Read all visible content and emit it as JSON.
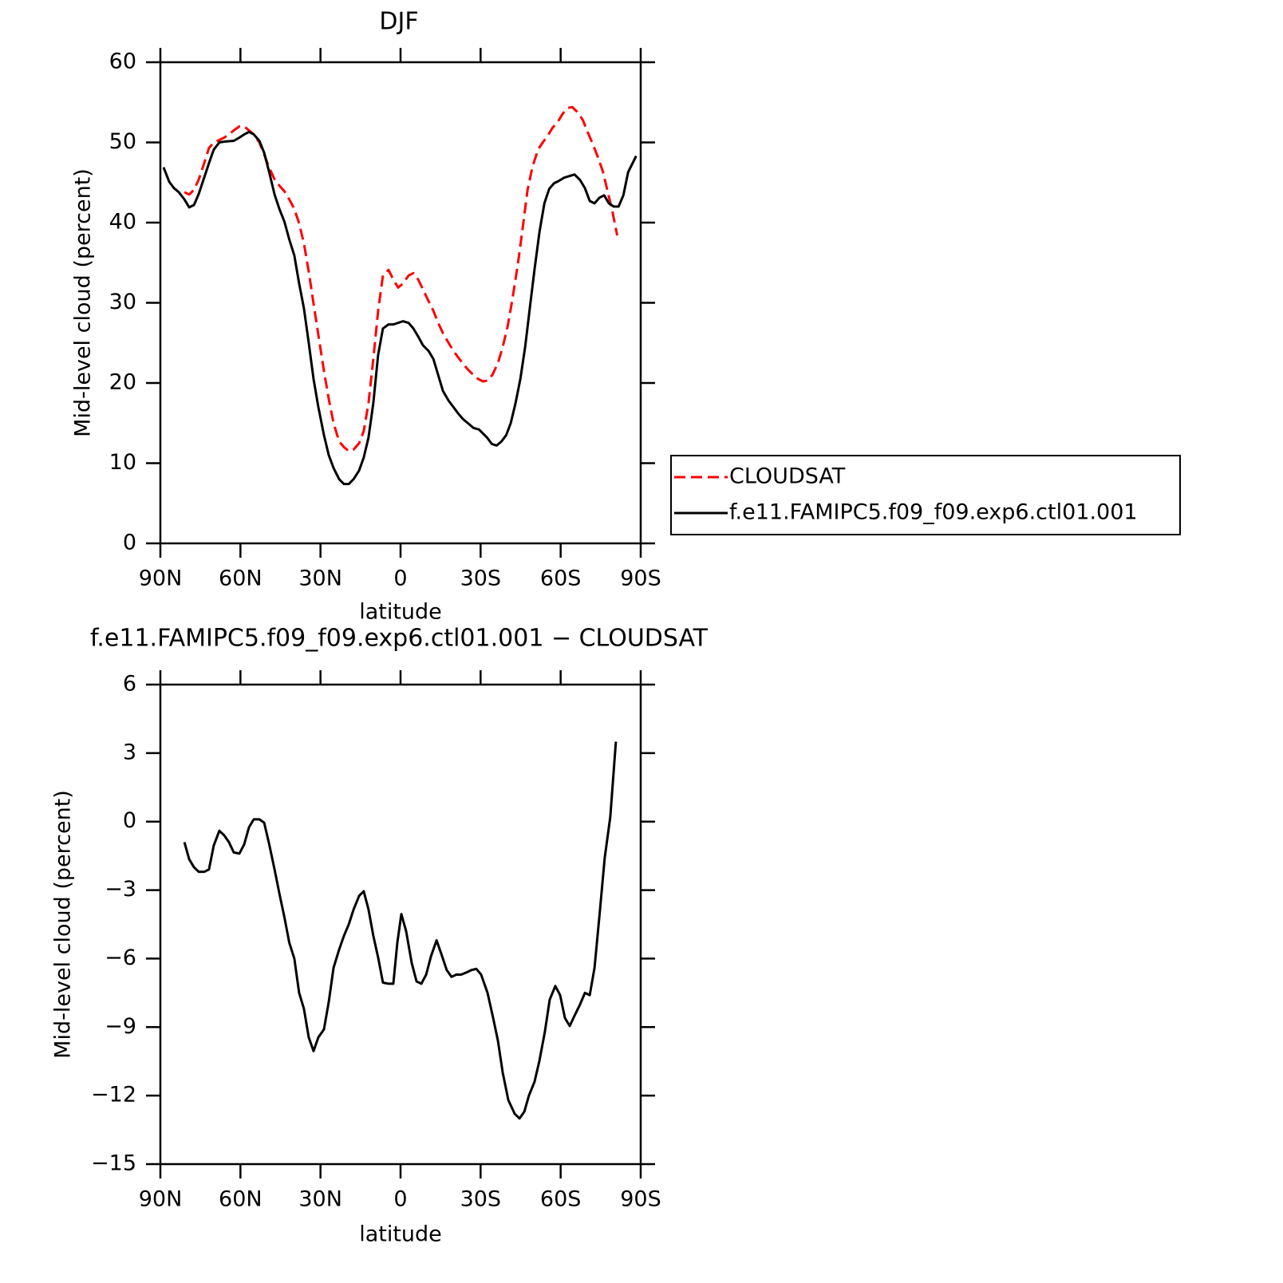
{
  "chart_data": [
    {
      "type": "line",
      "title": "DJF",
      "xlabel": "latitude",
      "ylabel": "Mid-level cloud (percent)",
      "xlim": [
        90,
        -90
      ],
      "xticks": [
        {
          "value": 90,
          "label": "90N"
        },
        {
          "value": 60,
          "label": "60N"
        },
        {
          "value": 30,
          "label": "30N"
        },
        0,
        {
          "value": -30,
          "label": "30S"
        },
        {
          "value": -60,
          "label": "60S"
        },
        {
          "value": -90,
          "label": "90S"
        }
      ],
      "ylim": [
        0,
        60
      ],
      "yticks": [
        0,
        10,
        20,
        30,
        40,
        50,
        60
      ],
      "legend": "outside-right",
      "series": [
        {
          "name": "CLOUDSAT",
          "color": "#ff0000",
          "line_style": "dashed",
          "x": [
            81,
            79.2,
            77.4,
            75.6,
            73.6,
            71.8,
            70,
            67.9,
            66.1,
            64.3,
            62.5,
            60.4,
            58.6,
            56.8,
            55,
            52.9,
            51.1,
            49.3,
            47.2,
            45.4,
            43.5,
            41.7,
            39.8,
            38,
            36.2,
            34.4,
            32.6,
            30.8,
            28.7,
            26.9,
            25.1,
            23,
            21.2,
            19.4,
            17.6,
            15.5,
            13.8,
            12,
            10.2,
            8.4,
            6.6,
            4.5,
            2.7,
            0.9,
            -0.9,
            -3,
            -4.8,
            -6.6,
            -8.4,
            -10.5,
            -12.3,
            -14.1,
            -15.9,
            -18,
            -19.8,
            -21.6,
            -23.4,
            -25.2,
            -27.3,
            -29.1,
            -30.9,
            -32.6,
            -34.4,
            -36.5,
            -38.3,
            -40.1,
            -41.9,
            -44,
            -45.8,
            -47.6,
            -49.4,
            -51.5,
            -53.3,
            -55.1,
            -56.9,
            -59,
            -60.8,
            -62.6,
            -64.4,
            -66.2,
            -68.3,
            -70.1,
            -71.9,
            -73.7,
            -75.8,
            -77.6,
            -79.4,
            -81.2
          ],
          "values": [
            43.8,
            43.5,
            44.1,
            45.4,
            47.4,
            49.3,
            50.0,
            50.3,
            50.6,
            51.0,
            51.5,
            52.0,
            52.0,
            51.5,
            51.0,
            50.0,
            48.5,
            46.9,
            45.4,
            44.6,
            43.9,
            42.9,
            41.7,
            39.9,
            37.4,
            33.9,
            29.9,
            26.0,
            21.5,
            18.0,
            15.0,
            12.7,
            12.0,
            11.5,
            11.7,
            12.5,
            14.0,
            17.5,
            23.0,
            29.0,
            33.4,
            34.1,
            32.9,
            31.9,
            32.4,
            33.4,
            33.7,
            32.9,
            31.7,
            30.2,
            29.0,
            27.5,
            26.2,
            25.0,
            24.0,
            23.2,
            22.4,
            21.7,
            21.0,
            20.5,
            20.2,
            20.3,
            21.0,
            22.5,
            24.5,
            27.0,
            30.4,
            34.9,
            39.4,
            44.1,
            46.9,
            49.1,
            50.0,
            50.8,
            51.8,
            52.6,
            53.6,
            54.3,
            54.4,
            53.8,
            52.8,
            51.3,
            49.9,
            48.4,
            46.4,
            43.9,
            41.4,
            38.4
          ]
        },
        {
          "name": "f.e11.FAMIPC5.f09_f09.exp6.ctl01.001",
          "color": "#000000",
          "line_style": "solid",
          "x": [
            88.8,
            86.7,
            84.9,
            83.1,
            81,
            79.2,
            77.4,
            75.6,
            73.6,
            71.8,
            70,
            67.9,
            66.1,
            62.5,
            60.4,
            58.6,
            56.8,
            55,
            52.9,
            51.1,
            49.3,
            47.2,
            45.4,
            43.5,
            41.7,
            39.8,
            38,
            36.2,
            34.4,
            32.6,
            30.8,
            28.7,
            26.9,
            25.1,
            23,
            21.2,
            19.4,
            17.6,
            15.5,
            13.8,
            12,
            10.2,
            8.4,
            6.6,
            4.5,
            2.7,
            0.9,
            -0.9,
            -3,
            -4.8,
            -6.6,
            -8.4,
            -10.5,
            -12.3,
            -14.1,
            -15.9,
            -18,
            -19.8,
            -21.6,
            -23.4,
            -25.2,
            -27.3,
            -29.4,
            -32.4,
            -34.2,
            -36,
            -37.8,
            -39.6,
            -41.3,
            -43.1,
            -44.9,
            -46.7,
            -48.5,
            -50.3,
            -52.1,
            -53.9,
            -55.7,
            -57.5,
            -59.3,
            -61.3,
            -65.2,
            -67.3,
            -69.1,
            -70.9,
            -72.7,
            -74.5,
            -76.3,
            -78.1,
            -79.9,
            -81.7,
            -83.5,
            -85.3,
            -88.3
          ],
          "values": [
            46.9,
            45.1,
            44.3,
            43.8,
            42.9,
            41.9,
            42.2,
            43.6,
            45.6,
            47.4,
            49.1,
            50.0,
            50.1,
            50.2,
            50.6,
            51.0,
            51.3,
            51.0,
            50.2,
            48.7,
            46.4,
            43.5,
            41.7,
            40.1,
            37.9,
            35.9,
            32.4,
            29.3,
            25.0,
            20.5,
            17.0,
            13.5,
            11.0,
            9.4,
            8.0,
            7.4,
            7.4,
            8.0,
            9.1,
            10.7,
            13.2,
            17.5,
            23.5,
            26.8,
            27.3,
            27.3,
            27.5,
            27.7,
            27.5,
            26.8,
            25.8,
            24.7,
            24.0,
            23.0,
            21.0,
            19.0,
            17.8,
            17.0,
            16.2,
            15.5,
            15.0,
            14.4,
            14.2,
            13.2,
            12.4,
            12.2,
            12.7,
            13.5,
            15.0,
            17.5,
            20.5,
            24.5,
            29.5,
            34.4,
            38.9,
            42.4,
            44.2,
            44.9,
            45.2,
            45.6,
            46.0,
            45.3,
            44.3,
            42.7,
            42.4,
            43.1,
            43.4,
            42.4,
            42.0,
            42.0,
            43.4,
            46.3,
            48.3
          ]
        }
      ]
    },
    {
      "type": "line",
      "title": "f.e11.FAMIPC5.f09_f09.exp6.ctl01.001 − CLOUDSAT",
      "xlabel": "latitude",
      "ylabel": "Mid-level cloud (percent)",
      "xlim": [
        90,
        -90
      ],
      "xticks": [
        {
          "value": 90,
          "label": "90N"
        },
        {
          "value": 60,
          "label": "60N"
        },
        {
          "value": 30,
          "label": "30N"
        },
        0,
        {
          "value": -30,
          "label": "30S"
        },
        {
          "value": -60,
          "label": "60S"
        },
        {
          "value": -90,
          "label": "90S"
        }
      ],
      "ylim": [
        -15,
        6
      ],
      "yticks": [
        {
          "value": -15,
          "label": "−15"
        },
        {
          "value": -12,
          "label": "−12"
        },
        {
          "value": -9,
          "label": "−9"
        },
        {
          "value": -6,
          "label": "−6"
        },
        {
          "value": -3,
          "label": "−3"
        },
        0,
        3,
        6
      ],
      "series": [
        {
          "color": "#000000",
          "line_style": "solid",
          "x": [
            81,
            79.2,
            77.4,
            75.6,
            73.6,
            71.8,
            70,
            67.9,
            66.1,
            64.3,
            62.5,
            60.4,
            58.6,
            56.8,
            55,
            52.9,
            51.1,
            49.3,
            47.2,
            45.4,
            43.5,
            41.7,
            39.8,
            38,
            36.2,
            34.4,
            32.6,
            30.8,
            28.7,
            26.9,
            25.1,
            23,
            21.2,
            19.4,
            17.6,
            15.5,
            13.8,
            12,
            10.2,
            8.4,
            6.6,
            4.5,
            2.7,
            1.2,
            -0.3,
            -2.1,
            -4.2,
            -6,
            -7.8,
            -9.6,
            -11.4,
            -13.5,
            -15.3,
            -17.3,
            -19.1,
            -20.9,
            -22.7,
            -24.8,
            -26.6,
            -28.4,
            -30.2,
            -32.6,
            -34.7,
            -36.5,
            -38.3,
            -40.4,
            -42.8,
            -44.6,
            -46.4,
            -48.1,
            -50.2,
            -52,
            -54.1,
            -55.9,
            -58,
            -59.8,
            -61.6,
            -63.4,
            -65.2,
            -67.3,
            -69.1,
            -70.9,
            -72.7,
            -74.8,
            -76.5,
            -78.6,
            -80.7
          ],
          "values": [
            -0.9,
            -1.65,
            -2.0,
            -2.2,
            -2.2,
            -2.1,
            -1.05,
            -0.4,
            -0.6,
            -0.9,
            -1.35,
            -1.4,
            -1.0,
            -0.25,
            0.1,
            0.1,
            -0.05,
            -0.95,
            -2.1,
            -3.15,
            -4.2,
            -5.3,
            -6.0,
            -7.5,
            -8.2,
            -9.45,
            -10.05,
            -9.45,
            -9.1,
            -7.9,
            -6.4,
            -5.6,
            -5.0,
            -4.5,
            -3.85,
            -3.25,
            -3.05,
            -3.85,
            -5.0,
            -5.95,
            -7.05,
            -7.1,
            -7.1,
            -5.3,
            -4.05,
            -4.8,
            -6.2,
            -7.0,
            -7.1,
            -6.7,
            -5.9,
            -5.2,
            -5.8,
            -6.5,
            -6.8,
            -6.7,
            -6.7,
            -6.6,
            -6.5,
            -6.45,
            -6.7,
            -7.5,
            -8.6,
            -9.6,
            -11.0,
            -12.2,
            -12.8,
            -13.0,
            -12.7,
            -12.0,
            -11.4,
            -10.5,
            -9.2,
            -7.8,
            -7.2,
            -7.6,
            -8.6,
            -8.95,
            -8.5,
            -8.0,
            -7.5,
            -7.6,
            -6.4,
            -3.8,
            -1.6,
            0.2,
            3.5
          ]
        }
      ]
    }
  ]
}
